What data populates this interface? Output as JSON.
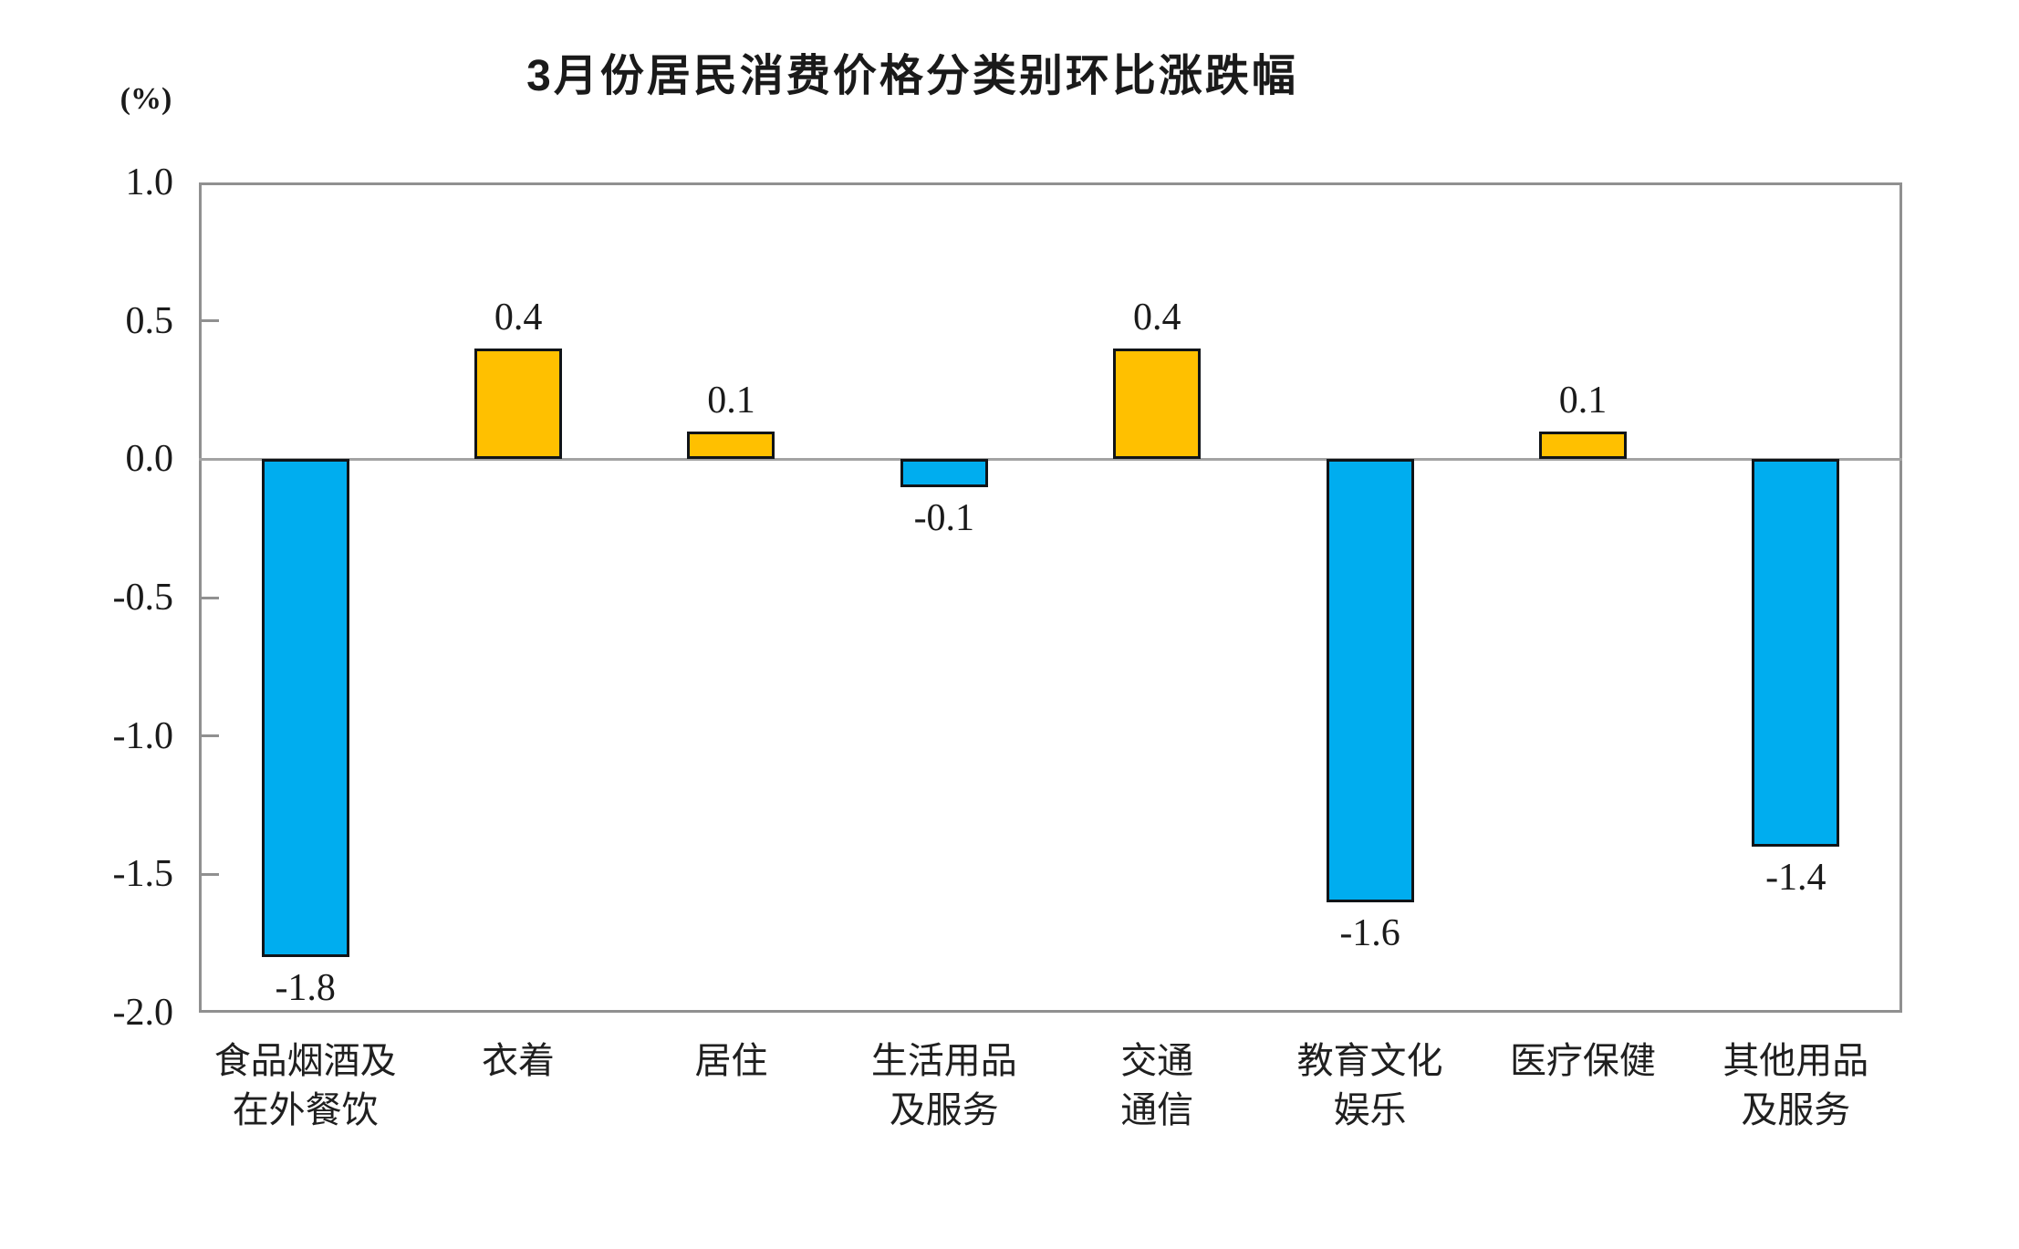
{
  "chart_data": {
    "type": "bar",
    "title": "3月份居民消费价格分类别环比涨跌幅",
    "unit_label": "(%)",
    "categories": [
      "食品烟酒及\n在外餐饮",
      "衣着",
      "居住",
      "生活用品\n及服务",
      "交通\n通信",
      "教育文化\n娱乐",
      "医疗保健",
      "其他用品\n及服务"
    ],
    "values": [
      -1.8,
      0.4,
      0.1,
      -0.1,
      0.4,
      -1.6,
      0.1,
      -1.4
    ],
    "value_labels": [
      "-1.8",
      "0.4",
      "0.1",
      "-0.1",
      "0.4",
      "-1.6",
      "0.1",
      "-1.4"
    ],
    "ylabel": "",
    "xlabel": "",
    "ylim": [
      -2.0,
      1.0
    ],
    "ytick_step": 0.5,
    "ytick_labels": [
      "1.0",
      "0.5",
      "0.0",
      "-0.5",
      "-1.0",
      "-1.5",
      "-2.0"
    ],
    "grid": false,
    "legend": "none",
    "colors": {
      "positive_bar": "#FFC000",
      "negative_bar": "#00ADEF",
      "bar_border": "#101418",
      "axis_frame": "#909090",
      "zero_line": "#a3a3a3",
      "text": "#1a1a1a",
      "background": "#ffffff"
    }
  }
}
